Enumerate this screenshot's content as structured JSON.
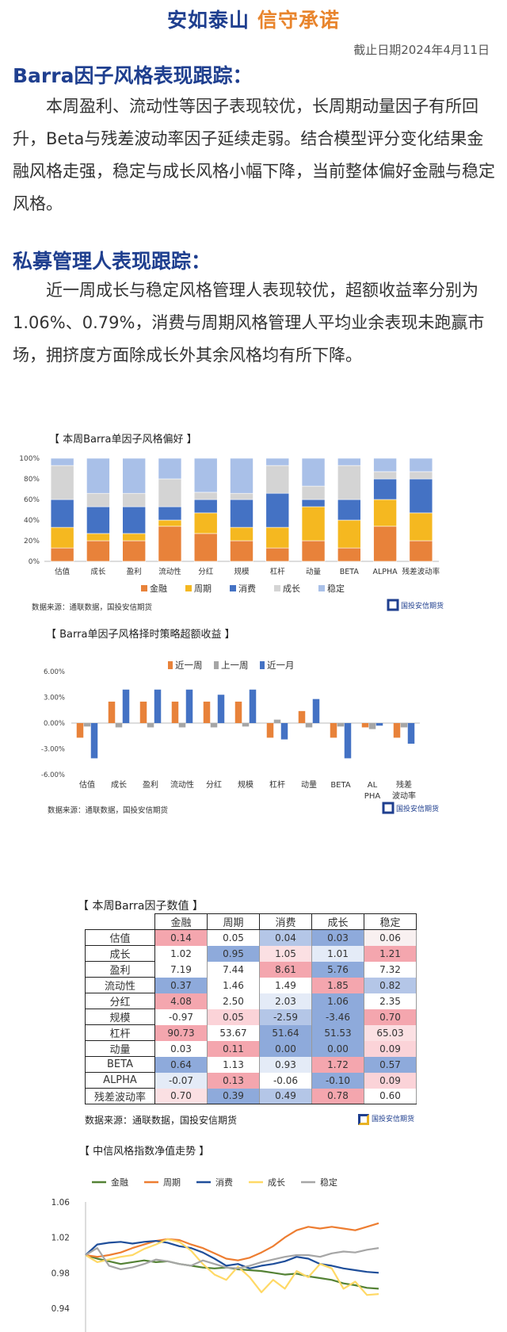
{
  "header": {
    "slogan_part1": "安如泰山",
    "slogan_part2": "信守承诺",
    "date": "截止日期2024年4月11日"
  },
  "sections": [
    {
      "title": "Barra因子风格表现跟踪：",
      "text": "本周盈利、流动性等因子表现较优，长周期动量因子有所回升，Beta与残差波动率因子延续走弱。结合模型评分变化结果金融风格走强，稳定与成长风格小幅下降，当前整体偏好金融与稳定风格。"
    },
    {
      "title": "私募管理人表现跟踪：",
      "text": "近一周成长与稳定风格管理人表现较优，超额收益率分别为1.06%、0.79%，消费与周期风格管理人平均业余表现未跑赢市场，拥挤度方面除成长外其余风格均有所下降。"
    }
  ],
  "colors": {
    "navy": "#1f3f8f",
    "orange": "#e8842c",
    "fin": "#e8823a",
    "cyc": "#f5b820",
    "cons": "#4472c4",
    "growth": "#d4d4d4",
    "stable": "#a9c0e8"
  },
  "chart_data": [
    {
      "type": "bar",
      "stacked": true,
      "title": "【 本周Barra单因子风格偏好 】",
      "categories": [
        "估值",
        "成长",
        "盈利",
        "流动性",
        "分红",
        "规模",
        "杠杆",
        "动量",
        "BETA",
        "ALPHA",
        "残差波动率"
      ],
      "ylim": [
        0,
        100
      ],
      "yticks": [
        "0%",
        "20%",
        "40%",
        "60%",
        "80%",
        "100%"
      ],
      "series": [
        {
          "name": "金融",
          "color": "#e8823a",
          "values": [
            13,
            20,
            20,
            34,
            27,
            20,
            13,
            20,
            13,
            34,
            20
          ]
        },
        {
          "name": "周期",
          "color": "#f5b820",
          "values": [
            20,
            7,
            7,
            6,
            20,
            13,
            20,
            33,
            27,
            26,
            27
          ]
        },
        {
          "name": "消费",
          "color": "#4472c4",
          "values": [
            27,
            26,
            26,
            13,
            13,
            27,
            33,
            7,
            20,
            20,
            33
          ]
        },
        {
          "name": "成长",
          "color": "#d4d4d4",
          "values": [
            33,
            13,
            13,
            27,
            7,
            6,
            27,
            13,
            33,
            7,
            7
          ]
        },
        {
          "name": "稳定",
          "color": "#a9c0e8",
          "values": [
            7,
            34,
            34,
            20,
            33,
            34,
            7,
            27,
            7,
            13,
            13
          ]
        }
      ],
      "source": "数据来源：通联数据，国投安信期货"
    },
    {
      "type": "bar",
      "title": "【 Barra单因子风格择时策略超额收益 】",
      "categories": [
        "估值",
        "成长",
        "盈利",
        "流动性",
        "分红",
        "规模",
        "杠杆",
        "动量",
        "BETA",
        "ALPHA",
        "残差波动率"
      ],
      "ylim": [
        -6,
        6
      ],
      "yticks": [
        "-6.00%",
        "-3.00%",
        "0.00%",
        "3.00%",
        "6.00%"
      ],
      "series": [
        {
          "name": "近一周",
          "color": "#e8823a",
          "values": [
            -1.7,
            2.5,
            2.5,
            2.5,
            2.5,
            2.5,
            -1.7,
            1.4,
            -1.7,
            -0.5,
            -1.7
          ]
        },
        {
          "name": "上一周",
          "color": "#a6a6a6",
          "values": [
            -0.4,
            -0.5,
            -0.5,
            -0.5,
            -0.5,
            -0.4,
            0.4,
            -0.5,
            -0.4,
            -0.7,
            -0.5
          ]
        },
        {
          "name": "近一月",
          "color": "#4472c4",
          "values": [
            -4.1,
            3.9,
            3.9,
            3.9,
            3.3,
            3.9,
            -1.9,
            2.8,
            -4.1,
            -0.3,
            -2.4
          ]
        }
      ],
      "source": "数据来源：通联数据，国投安信期货"
    },
    {
      "type": "table",
      "title": "【 本周Barra因子数值 】",
      "columns": [
        "金融",
        "周期",
        "消费",
        "成长",
        "稳定"
      ],
      "rows": [
        {
          "label": "估值",
          "values": [
            "0.14",
            "0.05",
            "0.04",
            "0.03",
            "0.06"
          ],
          "colors": [
            "#f4a6ae",
            "#ffffff",
            "#b4c6e7",
            "#8eaadb",
            "#f8f0f0"
          ]
        },
        {
          "label": "成长",
          "values": [
            "1.02",
            "0.95",
            "1.05",
            "1.01",
            "1.21"
          ],
          "colors": [
            "#ffffff",
            "#8eaadb",
            "#fbe0e3",
            "#e4ebf7",
            "#f4a6ae"
          ]
        },
        {
          "label": "盈利",
          "values": [
            "7.19",
            "7.44",
            "8.61",
            "5.76",
            "7.32"
          ],
          "colors": [
            "#ffffff",
            "#ffffff",
            "#f4a6ae",
            "#8eaadb",
            "#ffffff"
          ]
        },
        {
          "label": "流动性",
          "values": [
            "0.37",
            "1.46",
            "1.49",
            "1.85",
            "0.82"
          ],
          "colors": [
            "#8eaadb",
            "#ffffff",
            "#ffffff",
            "#f4a6ae",
            "#b4c6e7"
          ]
        },
        {
          "label": "分红",
          "values": [
            "4.08",
            "2.50",
            "2.03",
            "1.06",
            "2.35"
          ],
          "colors": [
            "#f4a6ae",
            "#ffffff",
            "#e4ebf7",
            "#8eaadb",
            "#ffffff"
          ]
        },
        {
          "label": "规模",
          "values": [
            "-0.97",
            "0.05",
            "-2.59",
            "-3.46",
            "0.70"
          ],
          "colors": [
            "#ffffff",
            "#fbd3d8",
            "#b4c6e7",
            "#8eaadb",
            "#f4a6ae"
          ]
        },
        {
          "label": "杠杆",
          "values": [
            "90.73",
            "53.67",
            "51.64",
            "51.53",
            "65.03"
          ],
          "colors": [
            "#f4a6ae",
            "#ffffff",
            "#8eaadb",
            "#8eaadb",
            "#fbe0e3"
          ]
        },
        {
          "label": "动量",
          "values": [
            "0.03",
            "0.11",
            "0.00",
            "0.00",
            "0.09"
          ],
          "colors": [
            "#ffffff",
            "#f4a6ae",
            "#8eaadb",
            "#8eaadb",
            "#fbd3d8"
          ]
        },
        {
          "label": "BETA",
          "values": [
            "0.64",
            "1.13",
            "0.93",
            "1.72",
            "0.57"
          ],
          "colors": [
            "#8eaadb",
            "#ffffff",
            "#e4ebf7",
            "#f4a6ae",
            "#8eaadb"
          ]
        },
        {
          "label": "ALPHA",
          "values": [
            "-0.07",
            "0.13",
            "-0.06",
            "-0.10",
            "0.09"
          ],
          "colors": [
            "#e4ebf7",
            "#f4a6ae",
            "#ffffff",
            "#8eaadb",
            "#fbd3d8"
          ]
        },
        {
          "label": "残差波动率",
          "values": [
            "0.70",
            "0.39",
            "0.49",
            "0.78",
            "0.60"
          ],
          "colors": [
            "#fbe0e3",
            "#8eaadb",
            "#b4c6e7",
            "#f4a6ae",
            "#ffffff"
          ]
        }
      ],
      "source": "数据来源：通联数据，国投安信期货"
    },
    {
      "type": "line",
      "title": "【 中信风格指数净值走势 】",
      "ylim": [
        0.94,
        1.06
      ],
      "yticks": [
        "0.94",
        "0.98",
        "1.02",
        "1.06"
      ],
      "x": [
        0,
        1,
        2,
        3,
        4,
        5,
        6,
        7,
        8,
        9,
        10,
        11,
        12,
        13,
        14,
        15,
        16,
        17,
        18,
        19,
        20,
        21,
        22,
        23,
        24,
        25
      ],
      "series": [
        {
          "name": "金融",
          "color": "#548235",
          "values": [
            1.0,
            0.996,
            0.993,
            0.99,
            0.992,
            0.994,
            0.992,
            0.993,
            0.99,
            0.988,
            0.986,
            0.985,
            0.986,
            0.984,
            0.983,
            0.982,
            0.98,
            0.978,
            0.979,
            0.976,
            0.974,
            0.972,
            0.968,
            0.966,
            0.963,
            0.962
          ]
        },
        {
          "name": "周期",
          "color": "#ed7d31",
          "values": [
            1.0,
            0.998,
            1.0,
            1.003,
            1.008,
            1.012,
            1.016,
            1.018,
            1.017,
            1.012,
            1.008,
            1.002,
            0.996,
            0.994,
            0.997,
            1.003,
            1.01,
            1.02,
            1.028,
            1.032,
            1.03,
            1.032,
            1.03,
            1.028,
            1.032,
            1.036
          ]
        },
        {
          "name": "消费",
          "color": "#1f4e9a",
          "values": [
            1.0,
            1.012,
            1.014,
            1.015,
            1.013,
            1.015,
            1.016,
            1.014,
            1.01,
            1.008,
            1.003,
            0.996,
            0.988,
            0.99,
            0.985,
            0.988,
            0.99,
            0.993,
            0.998,
            0.996,
            0.99,
            0.988,
            0.985,
            0.983,
            0.981,
            0.98
          ]
        },
        {
          "name": "成长",
          "color": "#ffd966",
          "values": [
            1.0,
            0.992,
            0.995,
            0.998,
            1.0,
            1.007,
            1.012,
            1.018,
            1.015,
            1.005,
            0.99,
            0.978,
            0.972,
            0.987,
            0.975,
            0.958,
            0.972,
            0.962,
            0.982,
            0.975,
            0.99,
            0.985,
            0.962,
            0.97,
            0.955,
            0.956
          ]
        },
        {
          "name": "稳定",
          "color": "#a6a6a6",
          "values": [
            1.0,
            1.008,
            0.988,
            0.984,
            0.986,
            0.99,
            0.995,
            0.993,
            0.99,
            0.988,
            0.994,
            0.99,
            0.986,
            0.985,
            0.988,
            0.992,
            0.995,
            0.998,
            1.0,
            1.0,
            0.998,
            1.002,
            1.004,
            1.003,
            1.006,
            1.008
          ]
        }
      ]
    }
  ],
  "logo_text": "国投安信期货"
}
